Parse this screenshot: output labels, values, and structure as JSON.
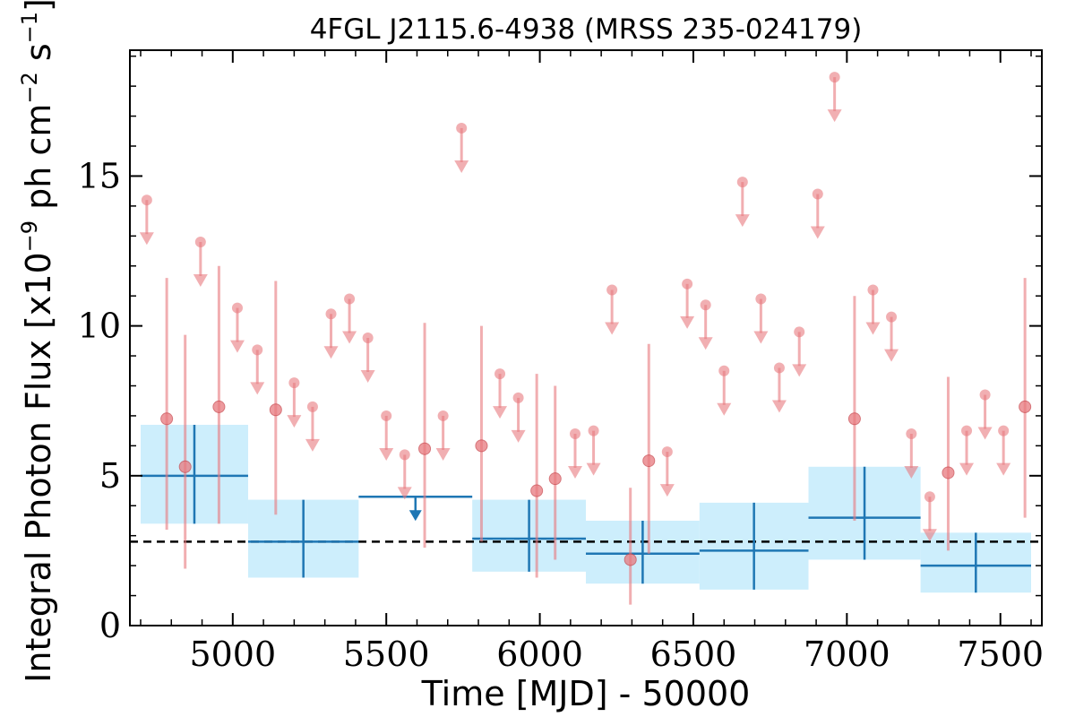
{
  "chart_data": {
    "type": "scatter",
    "title": "4FGL J2115.6-4938 (MRSS 235-024179)",
    "xlabel": "Time [MJD] - 50000",
    "ylabel": "Integral Photon Flux [x10",
    "ylabel_exp": "−9",
    "ylabel_unit": " ph cm",
    "ylabel_exp2": "−2",
    "ylabel_unit2": " s",
    "ylabel_exp3": "−1",
    "ylabel_end": "]",
    "xlim": [
      4665,
      7635
    ],
    "ylim": [
      0,
      19.2
    ],
    "xticks": [
      5000,
      5500,
      6000,
      6500,
      7000,
      7500
    ],
    "yticks": [
      0,
      5,
      10,
      15
    ],
    "mean_line": 2.8,
    "colors": {
      "short_bins": "#e8797e",
      "long_bins": "#1f77b4",
      "long_band": "#cdeefc",
      "mean_line": "#000000"
    },
    "series": [
      {
        "kind": "short-timescale",
        "detections": [
          {
            "x": 4785,
            "y": 6.9,
            "ylo": 3.2,
            "yhi": 11.6
          },
          {
            "x": 4845,
            "y": 5.3,
            "ylo": 1.9,
            "yhi": 9.7
          },
          {
            "x": 4955,
            "y": 7.3,
            "ylo": 3.4,
            "yhi": 12.0
          },
          {
            "x": 5140,
            "y": 7.2,
            "ylo": 3.7,
            "yhi": 11.5
          },
          {
            "x": 5625,
            "y": 5.9,
            "ylo": 2.6,
            "yhi": 10.1
          },
          {
            "x": 5810,
            "y": 6.0,
            "ylo": 2.8,
            "yhi": 10.0
          },
          {
            "x": 5990,
            "y": 4.5,
            "ylo": 1.6,
            "yhi": 8.4
          },
          {
            "x": 6050,
            "y": 4.9,
            "ylo": 2.2,
            "yhi": 8.0
          },
          {
            "x": 6295,
            "y": 2.2,
            "ylo": 0.7,
            "yhi": 4.6
          },
          {
            "x": 6355,
            "y": 5.5,
            "ylo": 2.4,
            "yhi": 9.4
          },
          {
            "x": 7025,
            "y": 6.9,
            "ylo": 3.5,
            "yhi": 11.0
          },
          {
            "x": 7330,
            "y": 5.1,
            "ylo": 2.5,
            "yhi": 8.3
          },
          {
            "x": 7580,
            "y": 7.3,
            "ylo": 3.6,
            "yhi": 11.6
          }
        ],
        "upper_limits": [
          {
            "x": 4720,
            "y": 14.2
          },
          {
            "x": 4895,
            "y": 12.8
          },
          {
            "x": 5015,
            "y": 10.6
          },
          {
            "x": 5080,
            "y": 9.2
          },
          {
            "x": 5200,
            "y": 8.1
          },
          {
            "x": 5260,
            "y": 7.3
          },
          {
            "x": 5320,
            "y": 10.4
          },
          {
            "x": 5380,
            "y": 10.9
          },
          {
            "x": 5440,
            "y": 9.6
          },
          {
            "x": 5500,
            "y": 7.0
          },
          {
            "x": 5560,
            "y": 5.7
          },
          {
            "x": 5685,
            "y": 7.0
          },
          {
            "x": 5745,
            "y": 16.6
          },
          {
            "x": 5870,
            "y": 8.4
          },
          {
            "x": 5930,
            "y": 7.6
          },
          {
            "x": 6115,
            "y": 6.4
          },
          {
            "x": 6175,
            "y": 6.5
          },
          {
            "x": 6235,
            "y": 11.2
          },
          {
            "x": 6415,
            "y": 5.8
          },
          {
            "x": 6480,
            "y": 11.4
          },
          {
            "x": 6540,
            "y": 10.7
          },
          {
            "x": 6600,
            "y": 8.5
          },
          {
            "x": 6660,
            "y": 14.8
          },
          {
            "x": 6720,
            "y": 10.9
          },
          {
            "x": 6780,
            "y": 8.6
          },
          {
            "x": 6845,
            "y": 9.8
          },
          {
            "x": 6905,
            "y": 14.4
          },
          {
            "x": 6960,
            "y": 18.3
          },
          {
            "x": 7085,
            "y": 11.2
          },
          {
            "x": 7145,
            "y": 10.3
          },
          {
            "x": 7210,
            "y": 6.4
          },
          {
            "x": 7270,
            "y": 4.3
          },
          {
            "x": 7390,
            "y": 6.5
          },
          {
            "x": 7450,
            "y": 7.7
          },
          {
            "x": 7510,
            "y": 6.5
          }
        ]
      },
      {
        "kind": "long-timescale",
        "detections": [
          {
            "x0": 4700,
            "x1": 5050,
            "y": 5.0,
            "ylo": 3.4,
            "yhi": 6.7
          },
          {
            "x0": 5050,
            "x1": 5410,
            "y": 2.8,
            "ylo": 1.6,
            "yhi": 4.2
          },
          {
            "x0": 5780,
            "x1": 6150,
            "y": 2.9,
            "ylo": 1.8,
            "yhi": 4.2
          },
          {
            "x0": 6150,
            "x1": 6520,
            "y": 2.4,
            "ylo": 1.4,
            "yhi": 3.5
          },
          {
            "x0": 6520,
            "x1": 6875,
            "y": 2.5,
            "ylo": 1.2,
            "yhi": 4.1
          },
          {
            "x0": 6875,
            "x1": 7240,
            "y": 3.6,
            "ylo": 2.2,
            "yhi": 5.3
          },
          {
            "x0": 7240,
            "x1": 7600,
            "y": 2.0,
            "ylo": 1.1,
            "yhi": 3.1
          }
        ],
        "upper_limits": [
          {
            "x0": 5410,
            "x1": 5780,
            "y": 4.3
          }
        ]
      }
    ]
  }
}
